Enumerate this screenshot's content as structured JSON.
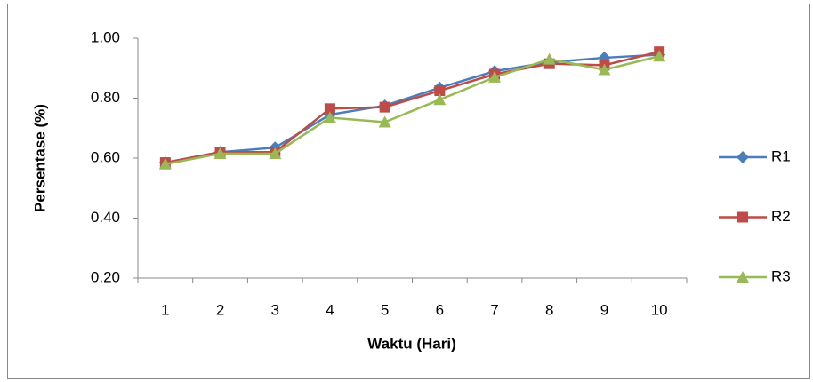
{
  "chart_data": {
    "type": "line",
    "xlabel": "Waktu (Hari)",
    "ylabel": "Persentase (%)",
    "categories": [
      1,
      2,
      3,
      4,
      5,
      6,
      7,
      8,
      9,
      10
    ],
    "series": [
      {
        "name": "R1",
        "color": "#4a7ebb",
        "marker": "diamond",
        "values": [
          0.585,
          0.62,
          0.635,
          0.745,
          0.775,
          0.835,
          0.89,
          0.92,
          0.935,
          0.945
        ]
      },
      {
        "name": "R2",
        "color": "#be4b48",
        "marker": "square",
        "values": [
          0.585,
          0.62,
          0.62,
          0.765,
          0.77,
          0.825,
          0.88,
          0.915,
          0.91,
          0.955
        ]
      },
      {
        "name": "R3",
        "color": "#98b954",
        "marker": "triangle",
        "values": [
          0.58,
          0.615,
          0.615,
          0.735,
          0.72,
          0.795,
          0.87,
          0.93,
          0.895,
          0.94
        ]
      }
    ],
    "ylim": [
      0.2,
      1.0
    ],
    "yticks": [
      {
        "value": 0.2,
        "label": "0.20"
      },
      {
        "value": 0.4,
        "label": "0.40"
      },
      {
        "value": 0.6,
        "label": "0.60"
      },
      {
        "value": 0.8,
        "label": "0.80"
      },
      {
        "value": 1.0,
        "label": "1.00"
      }
    ],
    "grid": false,
    "legend": "right"
  }
}
